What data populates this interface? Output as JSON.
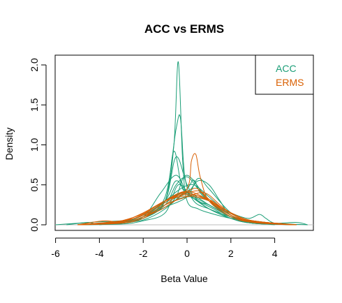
{
  "chart_data": {
    "type": "line",
    "title": "ACC vs ERMS",
    "xlabel": "Beta Value",
    "ylabel": "Density",
    "xlim": [
      -6,
      6
    ],
    "ylim": [
      0,
      2.1
    ],
    "x_ticks": [
      "-6",
      "-4",
      "-2",
      "0",
      "2",
      "4"
    ],
    "y_ticks": [
      "0.0",
      "0.5",
      "1.0",
      "1.5",
      "2.0"
    ],
    "legend": {
      "placement": "top-right",
      "entries": [
        {
          "label": "ACC",
          "color": "#1b9e77"
        },
        {
          "label": "ERMS",
          "color": "#d95f02"
        }
      ]
    },
    "series": [
      {
        "name": "ACC",
        "color": "#1b9e77",
        "curves": [
          {
            "x": [
              -5.5,
              -4.5,
              -3,
              -2,
              -1,
              -0.6,
              -0.4,
              -0.2,
              0,
              0.5,
              1,
              2,
              3,
              4,
              5.5
            ],
            "y": [
              0,
              0.03,
              0.05,
              0.08,
              0.3,
              1.0,
              2.04,
              0.8,
              0.3,
              0.2,
              0.15,
              0.08,
              0.05,
              0.02,
              0
            ]
          },
          {
            "x": [
              -5,
              -3,
              -2,
              -1,
              -0.5,
              -0.3,
              -0.1,
              0.3,
              1,
              2,
              3,
              5
            ],
            "y": [
              0,
              0.04,
              0.1,
              0.35,
              1.2,
              1.33,
              0.6,
              0.3,
              0.2,
              0.1,
              0.04,
              0
            ]
          },
          {
            "x": [
              -5,
              -3,
              -2,
              -1,
              -0.5,
              0,
              0.5,
              1,
              2,
              3,
              5
            ],
            "y": [
              0,
              0.03,
              0.1,
              0.3,
              0.85,
              0.5,
              0.3,
              0.25,
              0.1,
              0.03,
              0
            ]
          },
          {
            "x": [
              -5,
              -3,
              -2,
              -1,
              -0.5,
              0,
              0.5,
              1,
              2,
              3,
              5
            ],
            "y": [
              0,
              0.02,
              0.08,
              0.25,
              0.5,
              0.6,
              0.45,
              0.3,
              0.1,
              0.02,
              0
            ]
          },
          {
            "x": [
              -5,
              -3,
              -2,
              -1,
              0,
              0.5,
              1,
              1.5,
              2,
              3,
              5
            ],
            "y": [
              0,
              0.03,
              0.1,
              0.28,
              0.4,
              0.55,
              0.5,
              0.3,
              0.12,
              0.03,
              0
            ]
          },
          {
            "x": [
              -5,
              -4,
              -3,
              -2,
              -1,
              -0.5,
              0,
              1,
              2,
              3,
              5
            ],
            "y": [
              0,
              0.01,
              0.04,
              0.12,
              0.3,
              0.55,
              0.4,
              0.25,
              0.1,
              0.03,
              0
            ]
          },
          {
            "x": [
              -5,
              -3,
              -2,
              -1,
              -0.3,
              0.3,
              1,
              2,
              3,
              5
            ],
            "y": [
              0,
              0.04,
              0.12,
              0.3,
              0.45,
              0.5,
              0.35,
              0.12,
              0.03,
              0
            ]
          },
          {
            "x": [
              -5,
              -3,
              -2,
              -1,
              -0.5,
              0,
              1,
              2,
              3,
              5
            ],
            "y": [
              0,
              0.02,
              0.1,
              0.22,
              0.35,
              0.62,
              0.3,
              0.1,
              0.03,
              0
            ]
          },
          {
            "x": [
              -5,
              -3,
              -2,
              -1,
              0,
              1,
              2,
              2.8,
              3.3,
              3.6,
              4,
              5
            ],
            "y": [
              0,
              0.03,
              0.1,
              0.25,
              0.35,
              0.3,
              0.15,
              0.08,
              0.13,
              0.08,
              0.02,
              0
            ]
          },
          {
            "x": [
              -6,
              -5,
              -4.5,
              -4,
              -3,
              -2,
              -1,
              0,
              1,
              2,
              3,
              4,
              5,
              5.5
            ],
            "y": [
              0,
              0.02,
              0.03,
              0.01,
              0.04,
              0.1,
              0.3,
              0.4,
              0.25,
              0.1,
              0.05,
              0.02,
              0.03,
              0
            ]
          },
          {
            "x": [
              -5,
              -3,
              -2,
              -1,
              -0.6,
              -0.2,
              0.5,
              1,
              2,
              3,
              5
            ],
            "y": [
              0,
              0.03,
              0.1,
              0.3,
              0.92,
              0.45,
              0.3,
              0.2,
              0.08,
              0.02,
              0
            ]
          },
          {
            "x": [
              -5,
              -3,
              -2,
              -1,
              0,
              0.5,
              1,
              2,
              3,
              5
            ],
            "y": [
              0,
              0.02,
              0.08,
              0.22,
              0.35,
              0.58,
              0.45,
              0.15,
              0.04,
              0
            ]
          },
          {
            "x": [
              -5,
              -3,
              -2,
              -1.2,
              -0.5,
              0,
              0.5,
              1.2,
              2,
              3,
              5
            ],
            "y": [
              0,
              0.02,
              0.1,
              0.4,
              0.62,
              0.4,
              0.3,
              0.2,
              0.08,
              0.02,
              0
            ]
          },
          {
            "x": [
              -4,
              -3,
              -2,
              -1,
              0,
              0.3,
              0.6,
              1,
              2,
              3,
              4
            ],
            "y": [
              0,
              0.03,
              0.06,
              0.2,
              0.45,
              0.56,
              0.4,
              0.3,
              0.1,
              0.03,
              0
            ]
          },
          {
            "x": [
              -5,
              -3,
              -2,
              -1,
              -0.4,
              0.2,
              1,
              2,
              3,
              5
            ],
            "y": [
              0,
              0.01,
              0.05,
              0.15,
              0.5,
              0.35,
              0.2,
              0.08,
              0.02,
              0
            ]
          }
        ]
      },
      {
        "name": "ERMS",
        "color": "#d95f02",
        "curves": [
          {
            "x": [
              -5,
              -3,
              -2,
              -1,
              0,
              0.2,
              0.4,
              0.6,
              1,
              2,
              3,
              5
            ],
            "y": [
              0,
              0.03,
              0.1,
              0.22,
              0.45,
              0.8,
              0.88,
              0.6,
              0.3,
              0.1,
              0.03,
              0
            ]
          },
          {
            "x": [
              -5,
              -4,
              -3,
              -2,
              -1,
              0,
              0.5,
              1,
              2,
              3,
              4,
              4.8
            ],
            "y": [
              0,
              0.01,
              0.05,
              0.14,
              0.3,
              0.42,
              0.45,
              0.3,
              0.12,
              0.04,
              0.01,
              0
            ]
          },
          {
            "x": [
              -5,
              -3,
              -2,
              -1,
              -0.5,
              0,
              0.5,
              1,
              2,
              3,
              5
            ],
            "y": [
              0,
              0.05,
              0.12,
              0.28,
              0.38,
              0.42,
              0.38,
              0.3,
              0.12,
              0.04,
              0
            ]
          },
          {
            "x": [
              -5,
              -3.8,
              -3,
              -2,
              -1,
              0,
              0.6,
              1,
              2,
              3,
              5
            ],
            "y": [
              0,
              0.05,
              0.04,
              0.15,
              0.3,
              0.4,
              0.42,
              0.32,
              0.12,
              0.03,
              0
            ]
          },
          {
            "x": [
              -5,
              -3,
              -2,
              -1,
              -0.3,
              0.3,
              1,
              2,
              3,
              5
            ],
            "y": [
              0,
              0.03,
              0.1,
              0.3,
              0.4,
              0.38,
              0.3,
              0.15,
              0.05,
              0
            ]
          },
          {
            "x": [
              -5,
              -3,
              -2,
              -1,
              0,
              1,
              2,
              3,
              5
            ],
            "y": [
              0,
              0.04,
              0.13,
              0.3,
              0.36,
              0.3,
              0.15,
              0.05,
              0
            ]
          },
          {
            "x": [
              -5,
              -3,
              -2,
              -1,
              0,
              0.8,
              1.5,
              2,
              3,
              5
            ],
            "y": [
              0,
              0.02,
              0.08,
              0.25,
              0.35,
              0.4,
              0.25,
              0.15,
              0.05,
              0
            ]
          },
          {
            "x": [
              -5,
              -3,
              -2,
              -1,
              -0.5,
              0,
              1,
              2,
              3,
              5
            ],
            "y": [
              0,
              0.03,
              0.1,
              0.25,
              0.35,
              0.38,
              0.32,
              0.14,
              0.04,
              0
            ]
          }
        ]
      }
    ]
  }
}
